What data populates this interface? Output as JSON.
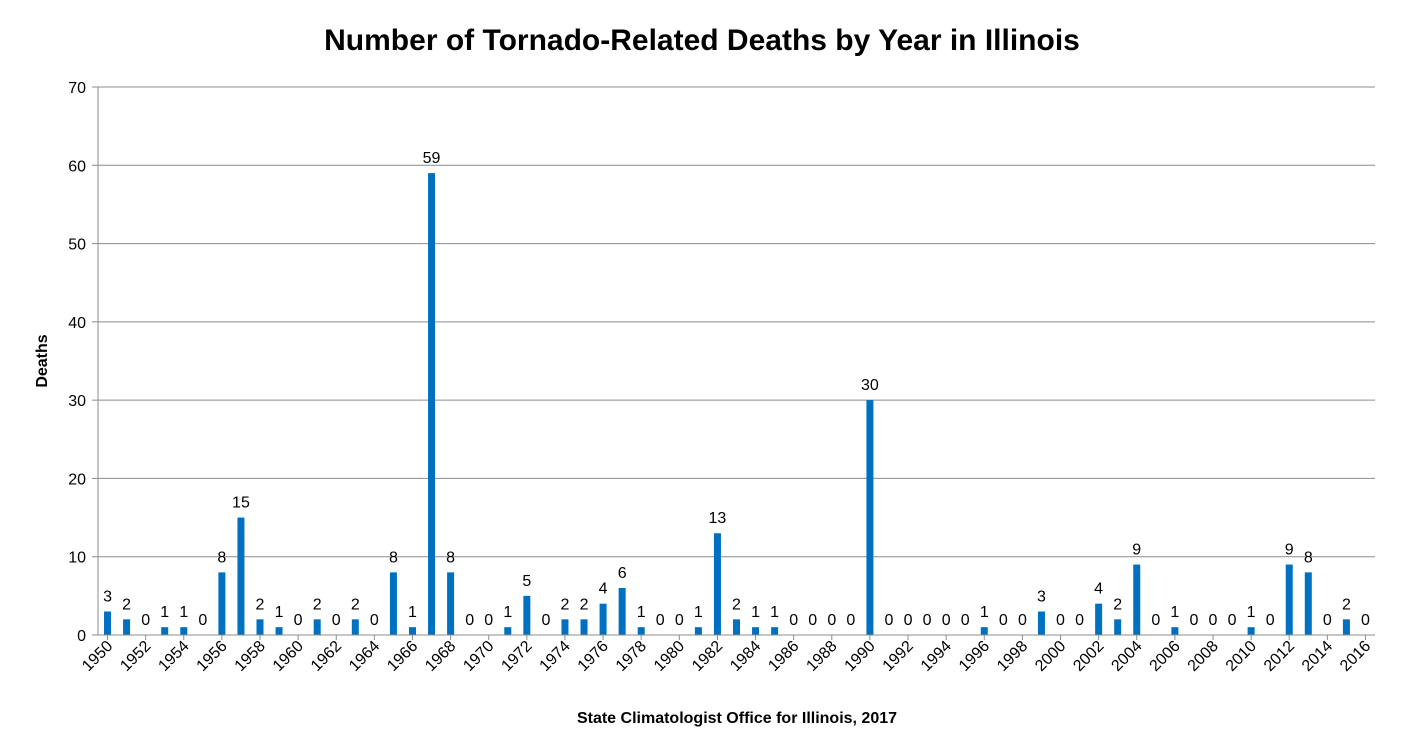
{
  "chart_data": {
    "type": "bar",
    "title": "Number of Tornado-Related Deaths by Year in Illinois",
    "xlabel": "State Climatologist Office for Illinois, 2017",
    "ylabel": "Deaths",
    "ylim": [
      0,
      70
    ],
    "yticks": [
      "0",
      "10",
      "20",
      "30",
      "40",
      "50",
      "60",
      "70"
    ],
    "grid": true,
    "bar_color": "#0070C0",
    "categories": [
      "1950",
      "1951",
      "1952",
      "1953",
      "1954",
      "1955",
      "1956",
      "1957",
      "1958",
      "1959",
      "1960",
      "1961",
      "1962",
      "1963",
      "1964",
      "1965",
      "1966",
      "1967",
      "1968",
      "1969",
      "1970",
      "1971",
      "1972",
      "1973",
      "1974",
      "1975",
      "1976",
      "1977",
      "1978",
      "1979",
      "1980",
      "1981",
      "1982",
      "1983",
      "1984",
      "1985",
      "1986",
      "1987",
      "1988",
      "1989",
      "1990",
      "1991",
      "1992",
      "1993",
      "1994",
      "1995",
      "1996",
      "1997",
      "1998",
      "1999",
      "2000",
      "2001",
      "2002",
      "2003",
      "2004",
      "2005",
      "2006",
      "2007",
      "2008",
      "2009",
      "2010",
      "2011",
      "2012",
      "2013",
      "2014",
      "2015",
      "2016"
    ],
    "values": [
      3,
      2,
      0,
      1,
      1,
      0,
      8,
      15,
      2,
      1,
      0,
      2,
      0,
      2,
      0,
      8,
      1,
      59,
      8,
      0,
      0,
      1,
      5,
      0,
      2,
      2,
      4,
      6,
      1,
      0,
      0,
      1,
      13,
      2,
      1,
      1,
      0,
      0,
      0,
      0,
      30,
      0,
      0,
      0,
      0,
      0,
      1,
      0,
      0,
      3,
      0,
      0,
      4,
      2,
      9,
      0,
      1,
      0,
      0,
      0,
      1,
      0,
      9,
      8,
      0,
      2,
      0
    ],
    "tick_labels": [
      "1950",
      "1952",
      "1954",
      "1956",
      "1958",
      "1960",
      "1962",
      "1964",
      "1966",
      "1968",
      "1970",
      "1972",
      "1974",
      "1976",
      "1978",
      "1980",
      "1982",
      "1984",
      "1986",
      "1988",
      "1990",
      "1992",
      "1994",
      "1996",
      "1998",
      "2000",
      "2002",
      "2004",
      "2006",
      "2008",
      "2010",
      "2012",
      "2014",
      "2016"
    ]
  }
}
